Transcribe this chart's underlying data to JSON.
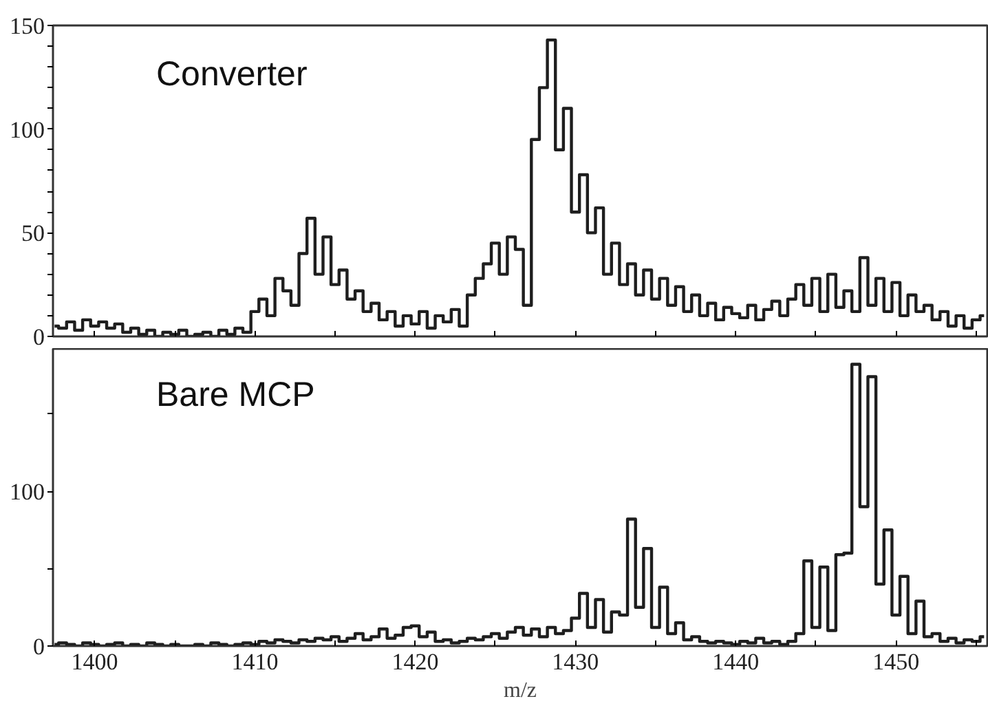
{
  "chart_data": [
    {
      "type": "step",
      "x": [
        1397.5,
        1398,
        1398.5,
        1399,
        1399.5,
        1400,
        1400.5,
        1401,
        1401.5,
        1402,
        1402.5,
        1403,
        1403.5,
        1404,
        1404.5,
        1405,
        1405.5,
        1406,
        1406.5,
        1407,
        1407.5,
        1408,
        1408.5,
        1409,
        1409.5,
        1410,
        1410.5,
        1411,
        1411.5,
        1412,
        1412.5,
        1413,
        1413.5,
        1414,
        1414.5,
        1415,
        1415.5,
        1416,
        1416.5,
        1417,
        1417.5,
        1418,
        1418.5,
        1419,
        1419.5,
        1420,
        1420.5,
        1421,
        1421.5,
        1422,
        1422.5,
        1423,
        1423.5,
        1424,
        1424.5,
        1425,
        1425.5,
        1426,
        1426.5,
        1427,
        1427.5,
        1428,
        1428.5,
        1429,
        1429.5,
        1430,
        1430.5,
        1431,
        1431.5,
        1432,
        1432.5,
        1433,
        1433.5,
        1434,
        1434.5,
        1435,
        1435.5,
        1436,
        1436.5,
        1437,
        1437.5,
        1438,
        1438.5,
        1439,
        1439.5,
        1440,
        1440.5,
        1441,
        1441.5,
        1442,
        1442.5,
        1443,
        1443.5,
        1444,
        1444.5,
        1445,
        1445.5,
        1446,
        1446.5,
        1447,
        1447.5,
        1448,
        1448.5,
        1449,
        1449.5,
        1450,
        1450.5,
        1451,
        1451.5,
        1452,
        1452.5,
        1453,
        1453.5,
        1454,
        1454.5,
        1455,
        1455.5
      ],
      "series": [
        {
          "name": "Converter",
          "color": "#1e1e1e",
          "values": [
            5,
            4,
            7,
            3,
            8,
            5,
            7,
            4,
            6,
            2,
            4,
            1,
            3,
            0,
            2,
            1,
            3,
            0,
            1,
            2,
            0,
            3,
            1,
            4,
            2,
            12,
            18,
            10,
            28,
            22,
            15,
            40,
            57,
            30,
            48,
            25,
            32,
            18,
            22,
            12,
            16,
            8,
            12,
            5,
            10,
            6,
            12,
            4,
            10,
            7,
            13,
            5,
            20,
            28,
            35,
            45,
            30,
            48,
            42,
            15,
            95,
            120,
            143,
            90,
            110,
            60,
            78,
            50,
            62,
            30,
            45,
            25,
            35,
            20,
            32,
            18,
            28,
            15,
            24,
            12,
            20,
            10,
            16,
            8,
            14,
            11,
            9,
            15,
            8,
            13,
            17,
            10,
            18,
            25,
            15,
            28,
            12,
            30,
            14,
            22,
            12,
            38,
            15,
            28,
            12,
            26,
            10,
            20,
            12,
            15,
            8,
            12,
            5,
            10,
            4,
            8,
            10
          ]
        }
      ],
      "xlim": [
        1397.4,
        1455.7
      ],
      "xticks": [
        {
          "value": 1400,
          "label": null
        },
        {
          "value": 1405,
          "label": null
        },
        {
          "value": 1410,
          "label": null
        },
        {
          "value": 1415,
          "label": null
        },
        {
          "value": 1420,
          "label": null
        },
        {
          "value": 1425,
          "label": null
        },
        {
          "value": 1430,
          "label": null
        },
        {
          "value": 1435,
          "label": null
        },
        {
          "value": 1440,
          "label": null
        },
        {
          "value": 1445,
          "label": null
        },
        {
          "value": 1450,
          "label": null
        },
        {
          "value": 1455,
          "label": null
        }
      ],
      "ylim": [
        0,
        150
      ],
      "yticks": [
        0,
        {
          "value": 10,
          "label": null
        },
        {
          "value": 20,
          "label": null
        },
        {
          "value": 30,
          "label": null
        },
        {
          "value": 40,
          "label": null
        },
        50,
        {
          "value": 60,
          "label": null
        },
        {
          "value": 70,
          "label": null
        },
        {
          "value": 80,
          "label": null
        },
        {
          "value": 90,
          "label": null
        },
        100,
        {
          "value": 110,
          "label": null
        },
        {
          "value": 120,
          "label": null
        },
        {
          "value": 130,
          "label": null
        },
        {
          "value": 140,
          "label": null
        },
        150
      ],
      "tick_labels": "y",
      "grid": false,
      "legend": false
    },
    {
      "type": "step",
      "xlabel": "m/z",
      "x": [
        1397.5,
        1398,
        1398.5,
        1399,
        1399.5,
        1400,
        1400.5,
        1401,
        1401.5,
        1402,
        1402.5,
        1403,
        1403.5,
        1404,
        1404.5,
        1405,
        1405.5,
        1406,
        1406.5,
        1407,
        1407.5,
        1408,
        1408.5,
        1409,
        1409.5,
        1410,
        1410.5,
        1411,
        1411.5,
        1412,
        1412.5,
        1413,
        1413.5,
        1414,
        1414.5,
        1415,
        1415.5,
        1416,
        1416.5,
        1417,
        1417.5,
        1418,
        1418.5,
        1419,
        1419.5,
        1420,
        1420.5,
        1421,
        1421.5,
        1422,
        1422.5,
        1423,
        1423.5,
        1424,
        1424.5,
        1425,
        1425.5,
        1426,
        1426.5,
        1427,
        1427.5,
        1428,
        1428.5,
        1429,
        1429.5,
        1430,
        1430.5,
        1431,
        1431.5,
        1432,
        1432.5,
        1433,
        1433.5,
        1434,
        1434.5,
        1435,
        1435.5,
        1436,
        1436.5,
        1437,
        1437.5,
        1438,
        1438.5,
        1439,
        1439.5,
        1440,
        1440.5,
        1441,
        1441.5,
        1442,
        1442.5,
        1443,
        1443.5,
        1444,
        1444.5,
        1445,
        1445.5,
        1446,
        1446.5,
        1447,
        1447.5,
        1448,
        1448.5,
        1449,
        1449.5,
        1450,
        1450.5,
        1451,
        1451.5,
        1452,
        1452.5,
        1453,
        1453.5,
        1454,
        1454.5,
        1455,
        1455.5
      ],
      "series": [
        {
          "name": "Bare MCP",
          "color": "#1e1e1e",
          "values": [
            1,
            2,
            1,
            0,
            2,
            1,
            0,
            1,
            2,
            0,
            1,
            0,
            2,
            1,
            0,
            1,
            0,
            0,
            1,
            0,
            2,
            1,
            0,
            1,
            2,
            1,
            3,
            2,
            4,
            3,
            2,
            4,
            3,
            5,
            4,
            6,
            3,
            5,
            8,
            4,
            6,
            11,
            5,
            7,
            12,
            13,
            6,
            9,
            3,
            4,
            2,
            3,
            5,
            4,
            6,
            8,
            5,
            9,
            12,
            7,
            11,
            6,
            12,
            8,
            10,
            18,
            34,
            12,
            30,
            9,
            22,
            20,
            82,
            25,
            63,
            12,
            38,
            8,
            15,
            4,
            6,
            3,
            2,
            3,
            2,
            1,
            3,
            2,
            5,
            2,
            3,
            1,
            3,
            8,
            55,
            12,
            51,
            10,
            59,
            60,
            182,
            90,
            174,
            40,
            75,
            20,
            45,
            8,
            29,
            6,
            8,
            3,
            5,
            2,
            4,
            3,
            6
          ]
        }
      ],
      "xlim": [
        1397.4,
        1455.7
      ],
      "xticks": [
        1400,
        {
          "value": 1405,
          "label": null
        },
        1410,
        {
          "value": 1415,
          "label": null
        },
        1420,
        {
          "value": 1425,
          "label": null
        },
        1430,
        {
          "value": 1435,
          "label": null
        },
        1440,
        {
          "value": 1445,
          "label": null
        },
        1450,
        {
          "value": 1455,
          "label": null
        }
      ],
      "ylim": [
        0,
        192
      ],
      "yticks": [
        0,
        {
          "value": 50,
          "label": null
        },
        100,
        {
          "value": 150,
          "label": null
        }
      ],
      "grid": false,
      "legend": false
    }
  ]
}
